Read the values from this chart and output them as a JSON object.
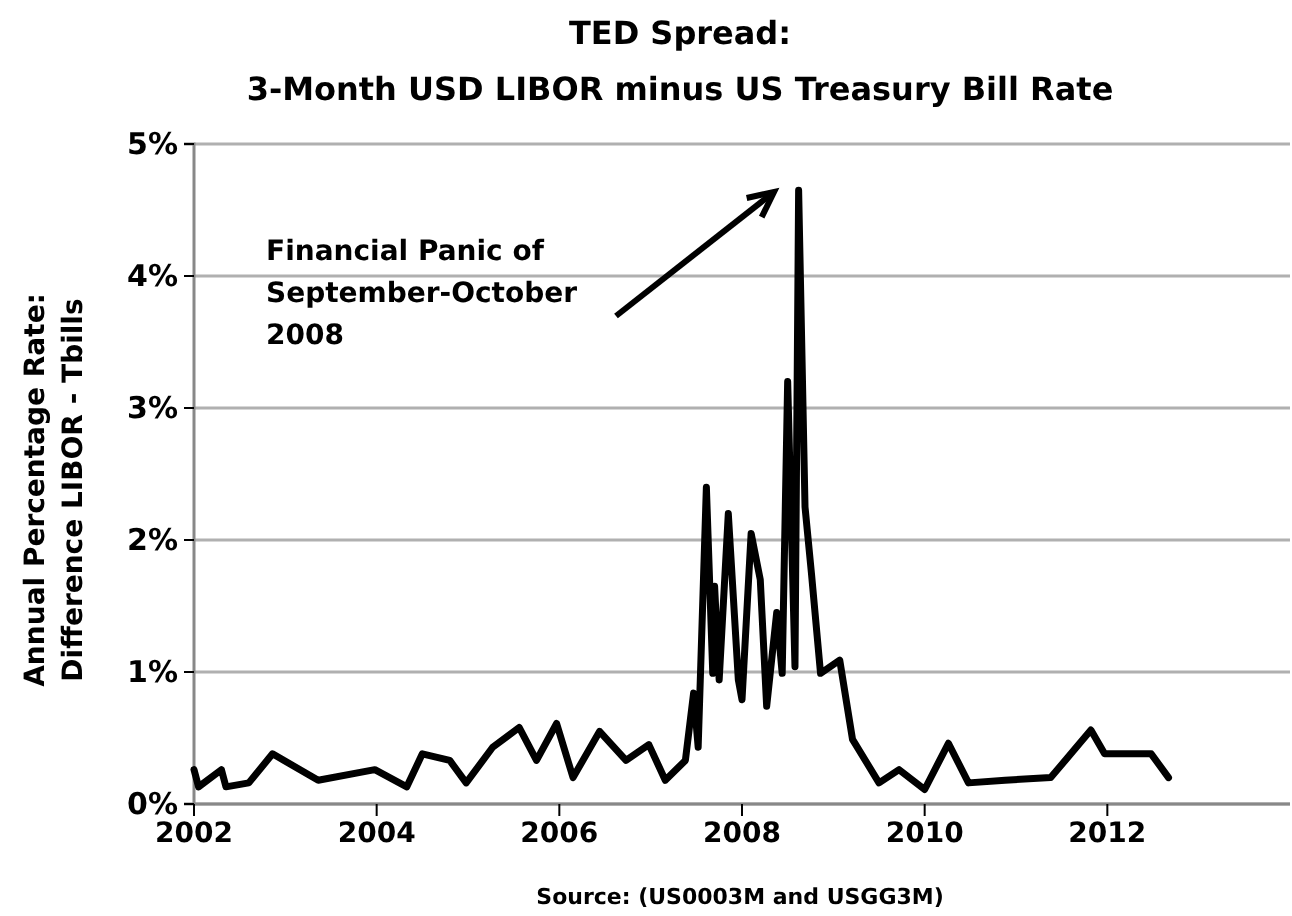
{
  "chart_data": {
    "type": "line",
    "title": "TED Spread:",
    "subtitle": "3-Month USD LIBOR minus US Treasury Bill Rate",
    "ylabel": "Annual Percentage Rate: Difference LIBOR - Tbills",
    "annotations": [
      "Financial Panic of September-October 2008",
      "Source: (US0003M and USGG3M)"
    ],
    "xlim": [
      2002,
      2014
    ],
    "xticks": [
      2002,
      2004,
      2006,
      2008,
      2010,
      2012
    ],
    "ylim": [
      0,
      5
    ],
    "yticks": [
      {
        "value": 0,
        "label": "0%"
      },
      {
        "value": 1,
        "label": "1%"
      },
      {
        "value": 2,
        "label": "2%"
      },
      {
        "value": 3,
        "label": "3%"
      },
      {
        "value": 4,
        "label": "4%"
      },
      {
        "value": 5,
        "label": "5%"
      }
    ],
    "grid": "y",
    "marker": "none",
    "line_style": "solid",
    "series": [
      {
        "color": "#000000",
        "x": [
          2002.0,
          2002.05,
          2002.3,
          2002.35,
          2002.6,
          2002.86,
          2003.36,
          2003.98,
          2004.33,
          2004.5,
          2004.8,
          2004.98,
          2005.27,
          2005.56,
          2005.75,
          2005.97,
          2006.15,
          2006.44,
          2006.73,
          2006.98,
          2007.16,
          2007.38,
          2007.47,
          2007.52,
          2007.61,
          2007.68,
          2007.7,
          2007.75,
          2007.85,
          2007.96,
          2008.0,
          2008.1,
          2008.2,
          2008.27,
          2008.38,
          2008.44,
          2008.5,
          2008.58,
          2008.62,
          2008.69,
          2008.76,
          2008.86,
          2009.07,
          2009.21,
          2009.5,
          2009.72,
          2010.0,
          2010.26,
          2010.48,
          2010.88,
          2011.38,
          2011.82,
          2011.97,
          2012.48,
          2012.67
        ],
        "values": [
          0.26,
          0.13,
          0.26,
          0.13,
          0.16,
          0.38,
          0.18,
          0.26,
          0.13,
          0.38,
          0.33,
          0.16,
          0.43,
          0.58,
          0.33,
          0.61,
          0.2,
          0.55,
          0.33,
          0.45,
          0.18,
          0.33,
          0.84,
          0.43,
          2.4,
          0.99,
          1.65,
          0.94,
          2.2,
          0.94,
          0.79,
          2.05,
          1.7,
          0.74,
          1.45,
          0.99,
          3.2,
          1.04,
          4.65,
          2.25,
          1.75,
          0.99,
          1.09,
          0.49,
          0.16,
          0.26,
          0.11,
          0.46,
          0.16,
          0.18,
          0.2,
          0.56,
          0.38,
          0.38,
          0.2
        ]
      }
    ]
  }
}
